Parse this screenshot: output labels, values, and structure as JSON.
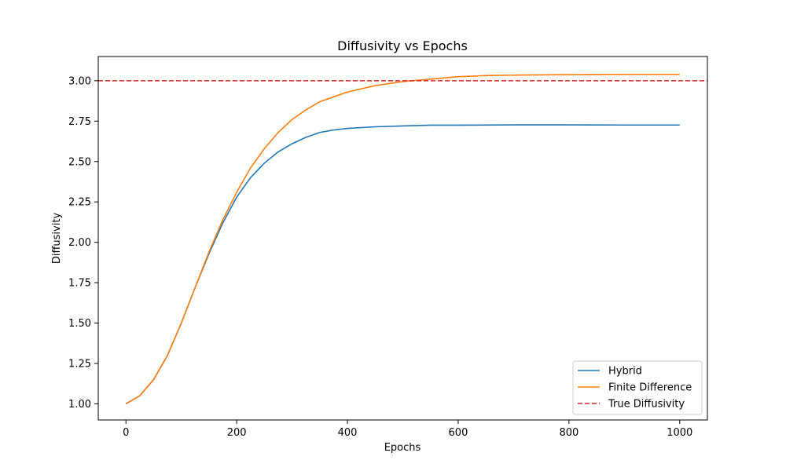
{
  "chart_data": {
    "type": "line",
    "title": "Diffusivity vs Epochs",
    "xlabel": "Epochs",
    "ylabel": "Diffusivity",
    "xlim": [
      -50,
      1050
    ],
    "ylim": [
      0.9,
      3.15
    ],
    "xticks": [
      0,
      200,
      400,
      600,
      800,
      1000
    ],
    "yticks": [
      1.0,
      1.25,
      1.5,
      1.75,
      2.0,
      2.25,
      2.5,
      2.75,
      3.0
    ],
    "ytick_labels": [
      "1.00",
      "1.25",
      "1.50",
      "1.75",
      "2.00",
      "2.25",
      "2.50",
      "2.75",
      "3.00"
    ],
    "grid": false,
    "legend_position": "lower-right",
    "series": [
      {
        "name": "Hybrid",
        "color": "#1f77b4",
        "style": "solid",
        "x": [
          0,
          25,
          50,
          75,
          100,
          125,
          150,
          175,
          200,
          225,
          250,
          275,
          300,
          325,
          350,
          375,
          400,
          450,
          500,
          550,
          600,
          700,
          800,
          900,
          1000
        ],
        "y": [
          1.0,
          1.05,
          1.15,
          1.3,
          1.5,
          1.72,
          1.93,
          2.12,
          2.28,
          2.4,
          2.49,
          2.56,
          2.61,
          2.65,
          2.68,
          2.695,
          2.705,
          2.715,
          2.72,
          2.725,
          2.725,
          2.727,
          2.727,
          2.726,
          2.726
        ]
      },
      {
        "name": "Finite Difference",
        "color": "#ff7f0e",
        "style": "solid",
        "x": [
          0,
          25,
          50,
          75,
          100,
          125,
          150,
          175,
          200,
          225,
          250,
          275,
          300,
          325,
          350,
          375,
          400,
          450,
          500,
          550,
          600,
          650,
          700,
          800,
          900,
          1000
        ],
        "y": [
          1.0,
          1.05,
          1.15,
          1.3,
          1.5,
          1.72,
          1.94,
          2.14,
          2.31,
          2.46,
          2.58,
          2.68,
          2.76,
          2.82,
          2.87,
          2.9,
          2.93,
          2.97,
          2.995,
          3.01,
          3.025,
          3.032,
          3.035,
          3.038,
          3.04,
          3.04
        ]
      },
      {
        "name": "True Diffusivity",
        "color": "#d62728",
        "style": "dashed",
        "hline": 3.0
      }
    ]
  }
}
